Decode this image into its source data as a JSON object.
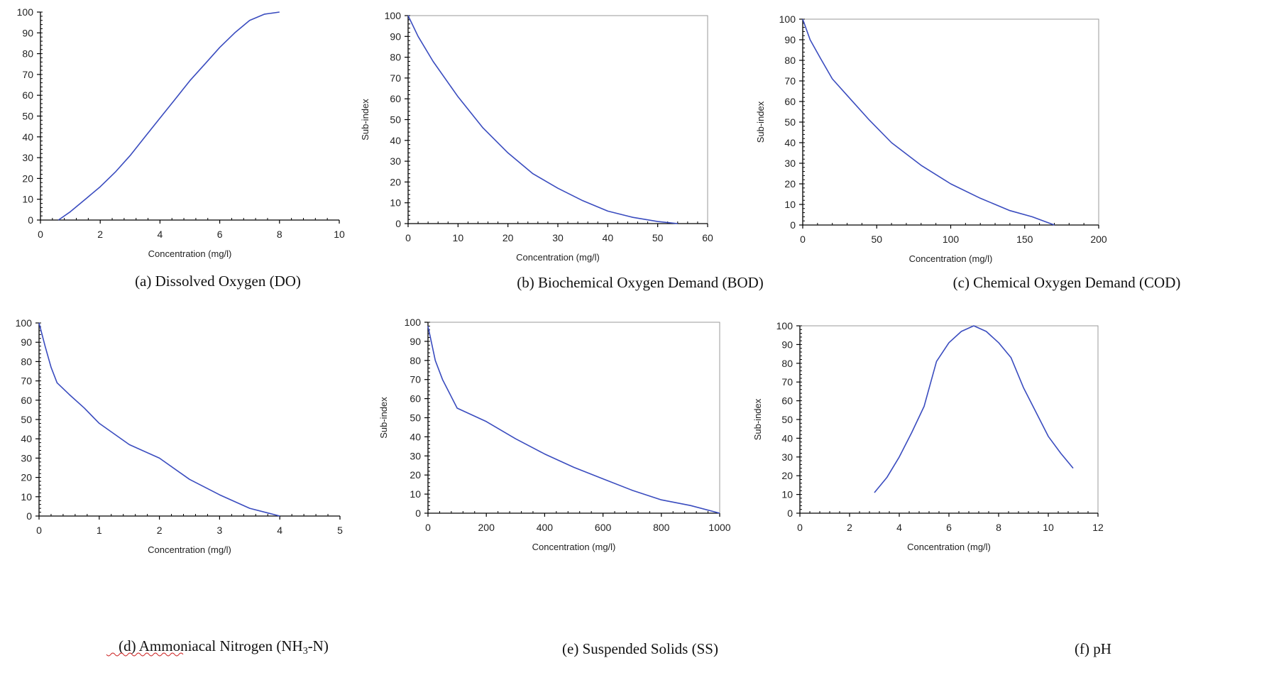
{
  "colors": {
    "line": "#3a4cbf",
    "axis": "#000000",
    "frame": "#9a9a9a",
    "spellcheck": "#cc2222"
  },
  "chart_data": [
    {
      "type": "line",
      "caption": "(a) Dissolved Oxygen (DO)",
      "xlabel": "Concentration (mg/l)",
      "ylabel": "",
      "xlim": [
        0,
        10
      ],
      "ylim": [
        0,
        100
      ],
      "xticks": [
        0,
        2,
        4,
        6,
        8,
        10
      ],
      "yticks": [
        0,
        10,
        20,
        30,
        40,
        50,
        60,
        70,
        80,
        90,
        100
      ],
      "frame": false,
      "series": [
        {
          "x": [
            0.6,
            1,
            1.5,
            2,
            2.5,
            3,
            3.5,
            4,
            4.5,
            5,
            5.5,
            6,
            6.5,
            7,
            7.5,
            8
          ],
          "y": [
            0,
            4,
            10,
            16,
            23,
            31,
            40,
            49,
            58,
            67,
            75,
            83,
            90,
            96,
            99,
            100
          ]
        }
      ]
    },
    {
      "type": "line",
      "caption": "(b) Biochemical Oxygen Demand (BOD)",
      "xlabel": "Concentration (mg/l)",
      "ylabel": "Sub-index",
      "xlim": [
        0,
        60
      ],
      "ylim": [
        0,
        100
      ],
      "xticks": [
        0,
        10,
        20,
        30,
        40,
        50,
        60
      ],
      "yticks": [
        0,
        10,
        20,
        30,
        40,
        50,
        60,
        70,
        80,
        90,
        100
      ],
      "frame": true,
      "series": [
        {
          "x": [
            0,
            2,
            5,
            10,
            15,
            20,
            25,
            30,
            35,
            40,
            45,
            50,
            54
          ],
          "y": [
            100,
            90,
            78,
            61,
            46,
            34,
            24,
            17,
            11,
            6,
            3,
            1,
            0
          ]
        }
      ]
    },
    {
      "type": "line",
      "caption": "(c) Chemical Oxygen Demand (COD)",
      "xlabel": "Concentration (mg/l)",
      "ylabel": "Sub-index",
      "xlim": [
        0,
        200
      ],
      "ylim": [
        0,
        100
      ],
      "xticks": [
        0,
        50,
        100,
        150,
        200
      ],
      "yticks": [
        0,
        10,
        20,
        30,
        40,
        50,
        60,
        70,
        80,
        90,
        100
      ],
      "frame": true,
      "series": [
        {
          "x": [
            0,
            5,
            12,
            20,
            30,
            45,
            60,
            80,
            100,
            120,
            140,
            155,
            170
          ],
          "y": [
            100,
            90,
            81,
            71,
            63,
            51,
            40,
            29,
            20,
            13,
            7,
            4,
            0
          ]
        }
      ]
    },
    {
      "type": "line",
      "caption_prefix": "(d) ",
      "caption_word": "Ammoniacal",
      "caption_mid": " Nitrogen (NH",
      "caption_sub": "3",
      "caption_suffix": "-N)",
      "xlabel": "Concentration (mg/l)",
      "ylabel": "",
      "xlim": [
        0,
        5
      ],
      "ylim": [
        0,
        100
      ],
      "xticks": [
        0,
        1,
        2,
        3,
        4,
        5
      ],
      "yticks": [
        0,
        10,
        20,
        30,
        40,
        50,
        60,
        70,
        80,
        90,
        100
      ],
      "frame": false,
      "series": [
        {
          "x": [
            0,
            0.1,
            0.2,
            0.3,
            0.5,
            0.75,
            1,
            1.5,
            2,
            2.5,
            3,
            3.5,
            4
          ],
          "y": [
            100,
            88,
            77,
            69,
            63,
            56,
            48,
            37,
            30,
            19,
            11,
            4,
            0
          ]
        }
      ]
    },
    {
      "type": "line",
      "caption": "(e) Suspended Solids (SS)",
      "xlabel": "Concentration (mg/l)",
      "ylabel": "Sub-index",
      "xlim": [
        0,
        1000
      ],
      "ylim": [
        0,
        100
      ],
      "xticks": [
        0,
        200,
        400,
        600,
        800,
        1000
      ],
      "yticks": [
        0,
        10,
        20,
        30,
        40,
        50,
        60,
        70,
        80,
        90,
        100
      ],
      "frame": true,
      "series": [
        {
          "x": [
            0,
            25,
            50,
            100,
            200,
            300,
            400,
            500,
            600,
            700,
            800,
            900,
            1000
          ],
          "y": [
            98,
            80,
            70,
            55,
            48,
            39,
            31,
            24,
            18,
            12,
            7,
            4,
            0
          ]
        }
      ]
    },
    {
      "type": "line",
      "caption": "(f) pH",
      "xlabel": "Concentration (mg/l)",
      "ylabel": "Sub-index",
      "xlim": [
        0,
        12
      ],
      "ylim": [
        0,
        100
      ],
      "xticks": [
        0,
        2,
        4,
        6,
        8,
        10,
        12
      ],
      "yticks": [
        0,
        10,
        20,
        30,
        40,
        50,
        60,
        70,
        80,
        90,
        100
      ],
      "frame": true,
      "series": [
        {
          "x": [
            3,
            3.5,
            4,
            4.5,
            5,
            5.5,
            6,
            6.5,
            7,
            7.5,
            8,
            8.5,
            9,
            9.5,
            10,
            10.5,
            11
          ],
          "y": [
            11,
            19,
            30,
            43,
            57,
            81,
            91,
            97,
            100,
            97,
            91,
            83,
            67,
            54,
            41,
            32,
            24
          ]
        }
      ]
    }
  ]
}
